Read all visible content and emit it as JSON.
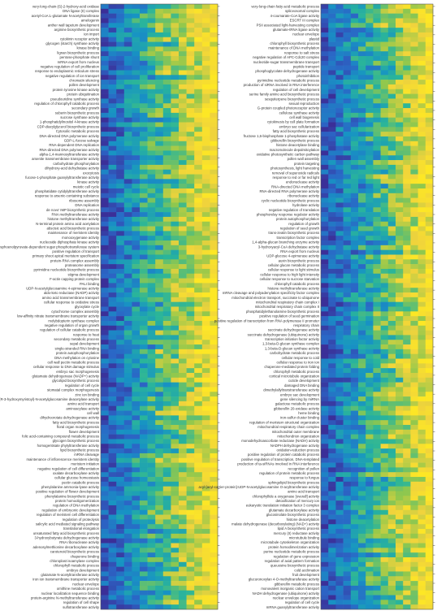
{
  "colors": {
    "background": "#ffffff",
    "tick": "#222222",
    "label": "#333333",
    "colormap": [
      "#3b2f98",
      "#2b66c6",
      "#1793c4",
      "#2ab59a",
      "#93c84c",
      "#f0d33c",
      "#fde725"
    ]
  },
  "chart_data": [
    {
      "type": "heatmap",
      "panel": "left",
      "colormap": "viridis-like (dark blue to yellow)",
      "n_rows": 128,
      "n_columns": 15,
      "visible_row_labels": [
        "very-long-chain-(S)-2-hydroxy-acid oxidase",
        "DNA ligase (II) complex",
        "acetyl-CoA:L-glutamate N-acetyltransferase",
        "amelogenin",
        "anther wall tapetum development",
        "arginine biosynthetic process",
        "ion import",
        "cytokinin receptor activity",
        "glycogen (starch) synthase activity",
        "kinase binding",
        "lignan biosynthetic process",
        "pentose-phosphate shunt",
        "mRNA export from nucleus",
        "negative regulation of cell proliferation",
        "response to endoplasmic reticulum stress",
        "negative regulation of ion transport",
        "chromatin silencing",
        "pollen development",
        "protein tyrosine kinase activity",
        "protein ubiquitination",
        "pseudouridine synthase activity",
        "regulation of chlorophyll catabolic process",
        "secondary growth",
        "suberin biosynthetic process",
        "sucrose synthase activity",
        "1-phosphatidylinositol 4-kinase activity",
        "CDP-diacylglycerol biosynthetic process",
        "Cytosolic metabolic process",
        "DNA-directed DNA polymerase activity",
        "GDP-L-fucose salvage",
        "RNA-dependent DNA replication",
        "RNA-directed DNA polymerase activity",
        "alpha-1,4-mannosyltransferase activity",
        "arsenite transmembrane transporter activity",
        "carbohydrate phosphorylation",
        "dihydroxy-acid dehydratase activity",
        "exocytosis",
        "fucose-1-phosphate guanylyltransferase activity",
        "kinase activity",
        "meiotic cell cycle",
        "phosphatidate cytidylyltransferase activity",
        "response to arsenic-containing substance",
        "ribosome assembly",
        "DNA replication",
        "de novo' IMP biosynthetic process",
        "RNA methyltransferase activity",
        "histone methyltransferase activity",
        "N-terminal protein amino acid acetylation",
        "abscisic acid biosynthetic process",
        "maintenance of meristem identity",
        "monooxygenase activity",
        "nucleoside diphosphate kinase activity",
        "phosphoenolpyruvate-dependent sugar phosphotransferase system",
        "positive regulation of transport",
        "primary shoot apical meristem specification",
        "protein-RNA complex assembly",
        "proteasome assembly",
        "pyrimidine nucleotide biosynthetic process",
        "stigma development",
        "F-actin capping protein complex",
        "PALI binding",
        "UDP-N-acetylglucosamine 4-epimerase activity",
        "aldo-keto reductase (NADP) activity",
        "amino acid transmembrane transport",
        "cellular response to oxidative stress",
        "glyoxylate cycle",
        "cytochrome complex assembly",
        "low-affinity nitrate transmembrane transporter activity",
        "molybdopterin synthase complex",
        "negative regulation of organ growth",
        "regulation of cellular catabolic process",
        "response to heat",
        "secondary metabolic process",
        "sepal development",
        "single-stranded RNA binding",
        "protein autophosphorylation",
        "DNA methylation on cytosine",
        "cell wall pectin metabolic process",
        "cellular response to DNA damage stimulus",
        "embryo sac morphogenesis",
        "glutamate dehydrogenase (NADP+) activity",
        "glycolipid biosynthetic process",
        "regulation of cell cycle",
        "stomatal complex morphogenesis",
        "zinc ion binding",
        "UDP-3-O-(R-3-hydroxymyristoyl)-N-acetylglucosamine deacetylase activity",
        "amino acid transport",
        "aminoacylase activity",
        "cell wall",
        "dihydroorotate dehydrogenase activity",
        "fatty acid biosynthetic process",
        "floral organ morphogenesis",
        "flower development",
        "folic acid-containing compound metabolic process",
        "glycogen biosynthetic process",
        "homogentisate phytyltransferase activity",
        "lipid biosynthetic process",
        "mRNA cleavage",
        "maintenance of inflorescence meristem identity",
        "meristem initiation",
        "negative regulation of cell differentiation",
        "oxalate decarboxylase activity",
        "cellular glucose homeostasis",
        "pectin catabolic process",
        "phenylalanine ammonia-lyase activity",
        "positive regulation of flower development",
        "phenylalanine biosynthetic process",
        "protein homooligomerization",
        "regulation of DNA methylation",
        "regulation of embryonic development",
        "regulation of meristem cell differentiation",
        "regulation of proteolysis",
        "salicylic acid mediated signaling pathway",
        "translational elongation",
        "unsaturated fatty acid biosynthetic process",
        "3-hydroxybutyrate dehydrogenase activity",
        "RNA ribonuclease activity",
        "adenosylmethionine decarboxylase activity",
        "carotenoid biosynthetic process",
        "chaperone binding",
        "chloroplast isoamylase complex",
        "chlorophyll metabolic process",
        "embryo development",
        "glutamate N-acetyltransferase activity",
        "iron ion transmembrane transporter activity",
        "nuclear envelope",
        "ornithine metabolic process",
        "nuclear localization sequence binding",
        "protein-arginine N-methyltransferase activity",
        "regulation of cell shape",
        "sulfotransferase activity"
      ]
    },
    {
      "type": "heatmap",
      "panel": "right",
      "colormap": "viridis-like (dark blue to yellow)",
      "n_rows": 128,
      "n_columns": 15,
      "visible_row_labels": [
        "very-long-chain fatty acid metabolic process",
        "spliceosomal complex",
        "4-coumarate-CoA ligase activity",
        "ESCRT III complex",
        "PSII associated light-harvesting complex",
        "glutamate-tRNA ligase activity",
        "nuclear envelope",
        "plastid",
        "chlorophyll biosynthetic process",
        "maintenance of DNA methylation",
        "response to salt stress",
        "negative regulation of APC-Cdc20 complex",
        "nucleotide-sugar transmembrane transport",
        "peptide transport",
        "phosphoglycolate dehydrogenase activity",
        "photoinhibition",
        "pyrimidine nucleotide metabolic process",
        "production of siRNA involved in RNA interference",
        "regulation of cell development",
        "serine family amino acid biosynthetic process",
        "sesquiterpene biosynthetic process",
        "sexual reproduction",
        "G-protein coupled photoreceptor activity",
        "cellulose synthase activity",
        "cell wall biogenesis",
        "cytokinesis by cell plate formation",
        "embryo sac cellularization",
        "fatty acid biosynthetic process",
        "fructose 1,6-bisphosphate 1-phosphatase activity",
        "gibberellin biosynthetic process",
        "histone deacetylase binding",
        "macromolecule depalmitoylation",
        "oxidative photosynthetic carbon pathway",
        "pollen wall assembly",
        "protein targeting",
        "photosynthesis, light harvesting",
        "removal of superoxide radicals",
        "response to red or far red light",
        "endonuclease activity",
        "RNA-directed DNA methylation",
        "RNA-directed RNA polymerase activity",
        "ribonuclease activity",
        "cyclic nucleotide biosynthetic process",
        "hydrolase activity",
        "negative regulation of translation",
        "phosphorelay response regulator activity",
        "protein autophosphorylation",
        "regulation of growth",
        "regulation of seed growth",
        "trans-zeatin biosynthetic process",
        "transcription factor complex",
        "1,4-alpha-glucan branching enzyme activity",
        "3-hydroxyacyl-CoA dehydratase activity",
        "RNA export from nucleus",
        "UDP-glucose 4-epimerase activity",
        "auxin biosynthetic process",
        "cellular glucan metabolic process",
        "cellular response to light stimulus",
        "cellular response to high light intensity",
        "cellular response to sucrose starvation",
        "chlorophyll catabolic process",
        "histone methyltransferase activity",
        "mRNA cleavage and polyadenylation specificity factor complex",
        "mitochondrial electron transport, succinate to ubiquinone",
        "mitochondrial respiratory chain complex I",
        "mitochondrial respiratory chain complex II",
        "phosphatidylethanolamine biosynthetic process",
        "positive regulation of seed germination",
        "positive regulation of transcription from RNA polymerase II promoter",
        "respiratory chain",
        "succinate dehydrogenase activity",
        "succinate dehydrogenase (ubiquinone) activity",
        "transcription initiation factor activity",
        "1,3-beta-D-glucan synthase complex",
        "1,3-beta-D-glucan synthase activity",
        "carbohydrate metabolic process",
        "cellular response to cold",
        "cellular response to iron ion",
        "chaperone-mediated protein folding",
        "chlorophyll metabolic process",
        "cortical microtubule organization",
        "cuticle development",
        "damaged DNA binding",
        "dimethylallyltranstransferase activity",
        "embryo sac development",
        "gene silencing by miRNA",
        "galactose metabolic process",
        "gibberellin 20-oxidase activity",
        "heme binding",
        "iron-sulfur cluster binding",
        "regulation of meristem structural organization",
        "mitochondrial respiratory chain complex",
        "mitochondrial outer membrane",
        "mitochondrion organization",
        "monodehydroascorbate reductase (NADH) activity",
        "NADPH dehydrogenase activity",
        "oxidation-reduction process",
        "positive regulation of protein catabolic process",
        "positive regulation of transcription, DNA-templated",
        "production of ta-siRNAs involved in RNA interference",
        "recognition of pollen",
        "regulation of protein metabolic process",
        "response to fungus",
        "sphingolipid biosynthetic process",
        "acyl-[acyl-carrier-protein]-UDP-N-acetylglucosamine O-acyltransferase activity",
        "amino acid transport",
        "chlorophyllide a oxygenase [overall] activity",
        "detoxification of mercury ion",
        "eukaryotic translation initiation factor 3 complex",
        "glutamate decarboxylase activity",
        "glucosinolate biosynthetic process",
        "histone deacetylation",
        "malate dehydrogenase (decarboxylating) (NAD+) activity",
        "lipid A biosynthetic process",
        "mercury (II) reductase activity",
        "microtubule binding",
        "microtubule cytoskeleton organization",
        "protein homodimerization activity",
        "purine nucleotide metabolic process",
        "regulation of gene expression",
        "regulation of axial pattern formation",
        "queuosine biosynthetic process",
        "cold acclimation",
        "fruit development",
        "glucuronoxylan 4-O-methyltransferase activity",
        "gibberellin metabolic process",
        "monovalent inorganic cation transport",
        "NADH dehydrogenase (ubiquinone) activity",
        "nuclear envelope organization",
        "regulation of cell cycle",
        "mRNA guanylyltransferase activity"
      ]
    }
  ]
}
